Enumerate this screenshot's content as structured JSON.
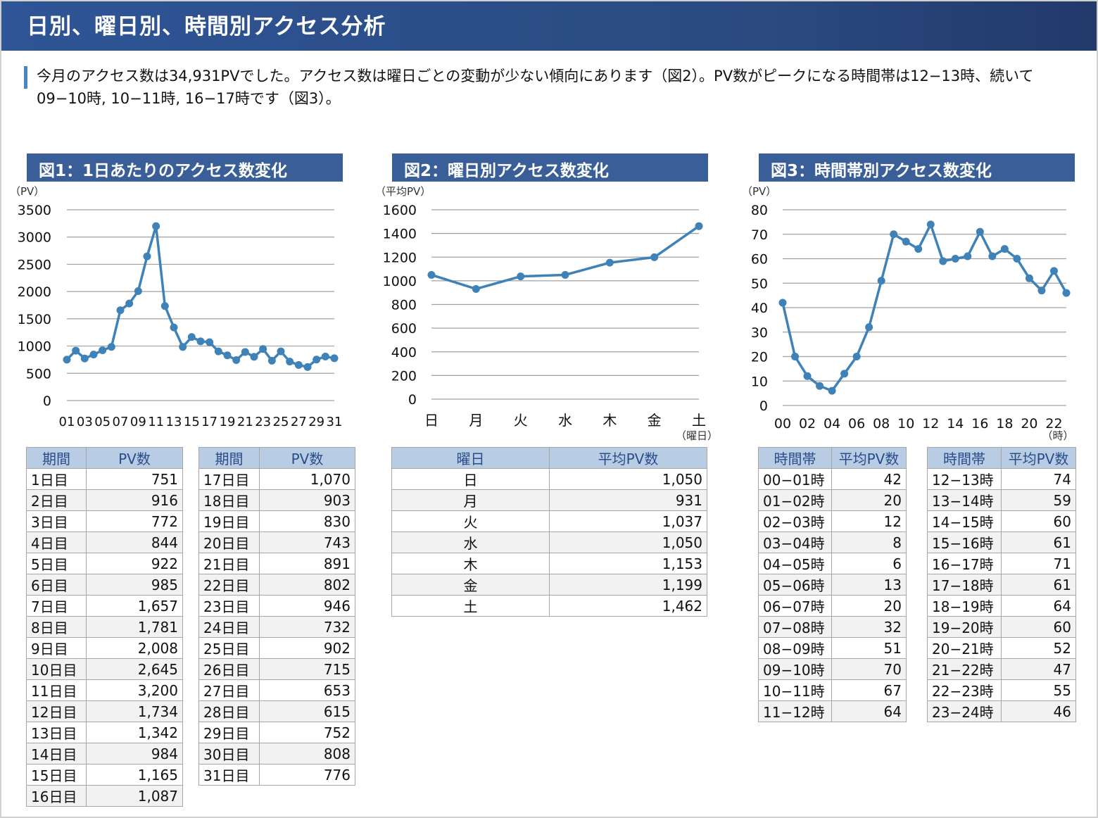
{
  "header": {
    "title": "日別、曜日別、時間別アクセス分析"
  },
  "summary": {
    "text": "今月のアクセス数は34,931PVでした。アクセス数は曜日ごとの変動が少ない傾向にあります（図2）。PV数がピークになる時間帯は12−13時、続いて09−10時, 10−11時, 16−17時です（図3）。"
  },
  "colors": {
    "header": "#2f5596",
    "title_box": "#3a5f98",
    "line": "#3e82b8",
    "table_header": "#b8cce4"
  },
  "chart_data": [
    {
      "type": "line",
      "title": "図1：1日あたりのアクセス数変化",
      "ylabel": "（PV）",
      "ylim": [
        0,
        3500
      ],
      "yticks": [
        0,
        500,
        1000,
        1500,
        2000,
        2500,
        3000,
        3500
      ],
      "grid": true,
      "xticklabels": [
        "01",
        "03",
        "05",
        "07",
        "09",
        "11",
        "13",
        "15",
        "17",
        "19",
        "21",
        "23",
        "25",
        "27",
        "29",
        "31"
      ],
      "x": [
        1,
        2,
        3,
        4,
        5,
        6,
        7,
        8,
        9,
        10,
        11,
        12,
        13,
        14,
        15,
        16,
        17,
        18,
        19,
        20,
        21,
        22,
        23,
        24,
        25,
        26,
        27,
        28,
        29,
        30,
        31
      ],
      "values": [
        751,
        916,
        772,
        844,
        922,
        985,
        1657,
        1781,
        2008,
        2645,
        3200,
        1734,
        1342,
        984,
        1165,
        1087,
        1070,
        903,
        830,
        743,
        891,
        802,
        946,
        732,
        902,
        715,
        653,
        615,
        752,
        808,
        776
      ]
    },
    {
      "type": "line",
      "title": "図2：曜日別アクセス数変化",
      "ylabel": "（平均PV）",
      "xlabel": "（曜日）",
      "ylim": [
        0,
        1600
      ],
      "yticks": [
        0,
        200,
        400,
        600,
        800,
        1000,
        1200,
        1400,
        1600
      ],
      "grid": true,
      "categories": [
        "日",
        "月",
        "火",
        "水",
        "木",
        "金",
        "土"
      ],
      "values": [
        1050,
        931,
        1037,
        1050,
        1153,
        1199,
        1462
      ]
    },
    {
      "type": "line",
      "title": "図3：時間帯別アクセス数変化",
      "ylabel": "（PV）",
      "xlabel": "（時）",
      "ylim": [
        0,
        80
      ],
      "yticks": [
        0,
        10,
        20,
        30,
        40,
        50,
        60,
        70,
        80
      ],
      "grid": true,
      "xticklabels": [
        "00",
        "02",
        "04",
        "06",
        "08",
        "10",
        "12",
        "14",
        "16",
        "18",
        "20",
        "22"
      ],
      "categories": [
        "00-01時",
        "01-02時",
        "02-03時",
        "03-04時",
        "04-05時",
        "05-06時",
        "06-07時",
        "07-08時",
        "08-09時",
        "09-10時",
        "10-11時",
        "11-12時",
        "12-13時",
        "13-14時",
        "14-15時",
        "15-16時",
        "16-17時",
        "17-18時",
        "18-19時",
        "19-20時",
        "20-21時",
        "21-22時",
        "22-23時",
        "23-24時"
      ],
      "values": [
        42,
        20,
        12,
        8,
        6,
        13,
        20,
        32,
        51,
        70,
        67,
        64,
        74,
        59,
        60,
        61,
        71,
        61,
        64,
        60,
        52,
        47,
        55,
        46
      ]
    }
  ],
  "tables": {
    "daily": {
      "headers": [
        "期間",
        "PV数"
      ],
      "rows": [
        [
          "1日目",
          "751"
        ],
        [
          "2日目",
          "916"
        ],
        [
          "3日目",
          "772"
        ],
        [
          "4日目",
          "844"
        ],
        [
          "5日目",
          "922"
        ],
        [
          "6日目",
          "985"
        ],
        [
          "7日目",
          "1,657"
        ],
        [
          "8日目",
          "1,781"
        ],
        [
          "9日目",
          "2,008"
        ],
        [
          "10日目",
          "2,645"
        ],
        [
          "11日目",
          "3,200"
        ],
        [
          "12日目",
          "1,734"
        ],
        [
          "13日目",
          "1,342"
        ],
        [
          "14日目",
          "984"
        ],
        [
          "15日目",
          "1,165"
        ],
        [
          "16日目",
          "1,087"
        ],
        [
          "17日目",
          "1,070"
        ],
        [
          "18日目",
          "903"
        ],
        [
          "19日目",
          "830"
        ],
        [
          "20日目",
          "743"
        ],
        [
          "21日目",
          "891"
        ],
        [
          "22日目",
          "802"
        ],
        [
          "23日目",
          "946"
        ],
        [
          "24日目",
          "732"
        ],
        [
          "25日目",
          "902"
        ],
        [
          "26日目",
          "715"
        ],
        [
          "27日目",
          "653"
        ],
        [
          "28日目",
          "615"
        ],
        [
          "29日目",
          "752"
        ],
        [
          "30日目",
          "808"
        ],
        [
          "31日目",
          "776"
        ]
      ]
    },
    "weekday": {
      "headers": [
        "曜日",
        "平均PV数"
      ],
      "rows": [
        [
          "日",
          "1,050"
        ],
        [
          "月",
          "931"
        ],
        [
          "火",
          "1,037"
        ],
        [
          "水",
          "1,050"
        ],
        [
          "木",
          "1,153"
        ],
        [
          "金",
          "1,199"
        ],
        [
          "土",
          "1,462"
        ]
      ]
    },
    "hourly": {
      "headers": [
        "時間帯",
        "平均PV数"
      ],
      "rows": [
        [
          "00−01時",
          "42"
        ],
        [
          "01−02時",
          "20"
        ],
        [
          "02−03時",
          "12"
        ],
        [
          "03−04時",
          "8"
        ],
        [
          "04−05時",
          "6"
        ],
        [
          "05−06時",
          "13"
        ],
        [
          "06−07時",
          "20"
        ],
        [
          "07−08時",
          "32"
        ],
        [
          "08−09時",
          "51"
        ],
        [
          "09−10時",
          "70"
        ],
        [
          "10−11時",
          "67"
        ],
        [
          "11−12時",
          "64"
        ],
        [
          "12−13時",
          "74"
        ],
        [
          "13−14時",
          "59"
        ],
        [
          "14−15時",
          "60"
        ],
        [
          "15−16時",
          "61"
        ],
        [
          "16−17時",
          "71"
        ],
        [
          "17−18時",
          "61"
        ],
        [
          "18−19時",
          "64"
        ],
        [
          "19−20時",
          "60"
        ],
        [
          "20−21時",
          "52"
        ],
        [
          "21−22時",
          "47"
        ],
        [
          "22−23時",
          "55"
        ],
        [
          "23−24時",
          "46"
        ]
      ]
    }
  }
}
